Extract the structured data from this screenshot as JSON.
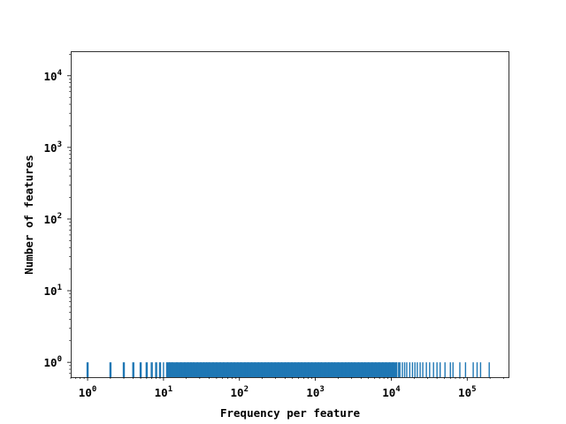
{
  "chart_data": {
    "type": "bar",
    "title": "",
    "xlabel": "Frequency per feature",
    "ylabel": "Number of features",
    "xscale": "log",
    "yscale": "log",
    "xlim": [
      0.6,
      350000
    ],
    "ylim": [
      0.62,
      22000
    ],
    "grid": false,
    "bar_color": "#1f77b4",
    "x_ticks": [
      {
        "base": "10",
        "exp": "0",
        "value": 1
      },
      {
        "base": "10",
        "exp": "1",
        "value": 10
      },
      {
        "base": "10",
        "exp": "2",
        "value": 100
      },
      {
        "base": "10",
        "exp": "3",
        "value": 1000
      },
      {
        "base": "10",
        "exp": "4",
        "value": 10000
      },
      {
        "base": "10",
        "exp": "5",
        "value": 100000
      }
    ],
    "y_ticks": [
      {
        "base": "10",
        "exp": "0",
        "value": 1
      },
      {
        "base": "10",
        "exp": "1",
        "value": 10
      },
      {
        "base": "10",
        "exp": "2",
        "value": 100
      },
      {
        "base": "10",
        "exp": "3",
        "value": 1000
      },
      {
        "base": "10",
        "exp": "4",
        "value": 10000
      }
    ],
    "dense_region": {
      "x_from": 11,
      "x_to": 12000,
      "count": 1
    },
    "x": [
      1,
      2,
      3,
      4,
      5,
      6,
      7,
      8,
      9,
      10,
      11,
      12,
      13,
      15,
      17,
      19,
      21,
      23,
      25,
      28,
      31,
      34,
      37,
      40,
      45,
      50,
      56,
      62,
      70,
      78,
      86,
      95,
      105,
      118,
      130,
      145,
      160,
      178,
      196,
      218,
      240,
      265,
      295,
      325,
      360,
      400,
      440,
      490,
      540,
      600,
      660,
      730,
      810,
      900,
      1000,
      1100,
      1200,
      1350,
      1500,
      1650,
      1800,
      2000,
      2250,
      2500,
      2750,
      3000,
      3300,
      3700,
      4100,
      4500,
      5000,
      5600,
      6200,
      6900,
      7700,
      8500,
      9500,
      10500,
      11800,
      12500,
      13000,
      14000,
      15000,
      16000,
      17500,
      19000,
      20500,
      22000,
      24000,
      26000,
      29000,
      32000,
      36000,
      40000,
      44000,
      51000,
      60000,
      65000,
      80000,
      95000,
      120000,
      135000,
      150000,
      195000
    ],
    "values": [
      1,
      1,
      1,
      1,
      1,
      1,
      1,
      1,
      1,
      1,
      1,
      1,
      1,
      1,
      1,
      1,
      1,
      1,
      1,
      1,
      1,
      1,
      1,
      1,
      1,
      1,
      1,
      1,
      1,
      1,
      1,
      1,
      1,
      1,
      1,
      1,
      1,
      1,
      1,
      1,
      1,
      1,
      1,
      1,
      1,
      1,
      1,
      1,
      1,
      1,
      1,
      1,
      1,
      1,
      1,
      1,
      1,
      1,
      1,
      1,
      1,
      1,
      1,
      1,
      1,
      1,
      1,
      1,
      1,
      1,
      1,
      1,
      1,
      1,
      1,
      1,
      1,
      1,
      1,
      1,
      1,
      1,
      1,
      1,
      1,
      1,
      1,
      1,
      1,
      1,
      1,
      1,
      1,
      1,
      1,
      1,
      1,
      1,
      1,
      1,
      1,
      1,
      1,
      1
    ]
  }
}
